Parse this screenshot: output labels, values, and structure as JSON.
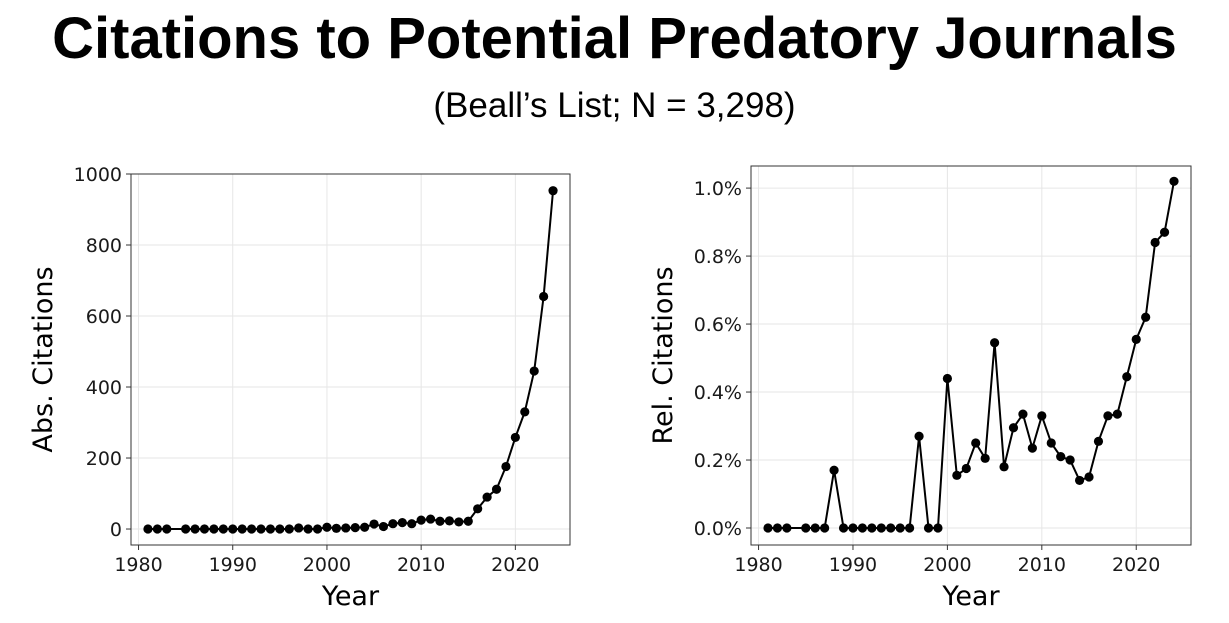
{
  "title": "Citations to Potential Predatory Journals",
  "subtitle": "(Beall’s List; N = 3,298)",
  "chart_data": [
    {
      "type": "line",
      "xlabel": "Year",
      "ylabel": "Abs. Citations",
      "xlim": [
        1979.2,
        2025.8
      ],
      "ylim": [
        -45,
        1000
      ],
      "xticks": [
        1980,
        1990,
        2000,
        2010,
        2020
      ],
      "yticks": [
        0,
        200,
        400,
        600,
        800,
        1000
      ],
      "ytick_labels": [
        "0",
        "200",
        "400",
        "600",
        "800",
        "1000"
      ],
      "grid": true,
      "color": "#000000",
      "x": [
        1981,
        1982,
        1983,
        1985,
        1986,
        1987,
        1988,
        1989,
        1990,
        1991,
        1992,
        1993,
        1994,
        1995,
        1996,
        1997,
        1998,
        1999,
        2000,
        2001,
        2002,
        2003,
        2004,
        2005,
        2006,
        2007,
        2008,
        2009,
        2010,
        2011,
        2012,
        2013,
        2014,
        2015,
        2016,
        2017,
        2018,
        2019,
        2020,
        2021,
        2022,
        2023,
        2024
      ],
      "y": [
        0,
        0,
        0,
        0,
        0,
        0,
        0,
        0,
        0,
        0,
        0,
        0,
        0,
        0,
        0,
        3,
        0,
        0,
        5,
        2,
        3,
        4,
        5,
        14,
        7,
        15,
        18,
        15,
        25,
        28,
        22,
        23,
        20,
        22,
        57,
        90,
        112,
        176,
        258,
        330,
        445,
        655,
        953
      ]
    },
    {
      "type": "line",
      "xlabel": "Year",
      "ylabel": "Rel. Citations",
      "xlim": [
        1979.2,
        2025.8
      ],
      "ylim": [
        -0.05,
        1.065
      ],
      "xticks": [
        1980,
        1990,
        2000,
        2010,
        2020
      ],
      "yticks": [
        0,
        0.2,
        0.4,
        0.6,
        0.8,
        1.0
      ],
      "ytick_labels": [
        "0.0%",
        "0.2%",
        "0.4%",
        "0.6%",
        "0.8%",
        "1.0%"
      ],
      "grid": true,
      "color": "#000000",
      "x": [
        1981,
        1982,
        1983,
        1985,
        1986,
        1987,
        1988,
        1989,
        1990,
        1991,
        1992,
        1993,
        1994,
        1995,
        1996,
        1997,
        1998,
        1999,
        2000,
        2001,
        2002,
        2003,
        2004,
        2005,
        2006,
        2007,
        2008,
        2009,
        2010,
        2011,
        2012,
        2013,
        2014,
        2015,
        2016,
        2017,
        2018,
        2019,
        2020,
        2021,
        2022,
        2023,
        2024
      ],
      "y": [
        0,
        0,
        0,
        0,
        0,
        0,
        0.17,
        0,
        0,
        0,
        0,
        0,
        0,
        0,
        0,
        0.27,
        0,
        0,
        0.44,
        0.155,
        0.175,
        0.25,
        0.205,
        0.545,
        0.18,
        0.295,
        0.335,
        0.235,
        0.33,
        0.25,
        0.21,
        0.2,
        0.14,
        0.15,
        0.255,
        0.33,
        0.335,
        0.445,
        0.555,
        0.62,
        0.84,
        0.87,
        1.02
      ]
    }
  ]
}
